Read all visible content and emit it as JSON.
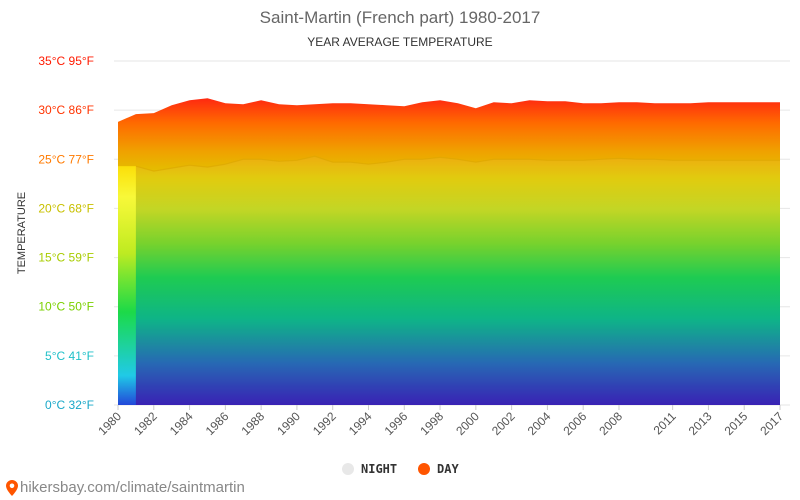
{
  "title": "Saint-Martin (French part) 1980-2017",
  "subtitle": "YEAR AVERAGE TEMPERATURE",
  "footer": {
    "text": "hikersbay.com/climate/saintmartin"
  },
  "colors": {
    "night": "#e8e8e8",
    "day": "#ff5500"
  },
  "legend": {
    "night": "NIGHT",
    "day": "DAY"
  },
  "chart_data": {
    "type": "area",
    "title": "Saint-Martin (French part) 1980-2017",
    "subtitle": "YEAR AVERAGE TEMPERATURE",
    "ylabel": "TEMPERATURE",
    "xlabel": "",
    "ylim": [
      0,
      35
    ],
    "y_ticks": [
      {
        "c": 0,
        "label": "0°C 32°F",
        "color": "#1aa8c8"
      },
      {
        "c": 5,
        "label": "5°C 41°F",
        "color": "#20c0c8"
      },
      {
        "c": 10,
        "label": "10°C 50°F",
        "color": "#7ad000"
      },
      {
        "c": 15,
        "label": "15°C 59°F",
        "color": "#a8cc00"
      },
      {
        "c": 20,
        "label": "20°C 68°F",
        "color": "#c8c000"
      },
      {
        "c": 25,
        "label": "25°C 77°F",
        "color": "#ff7a00"
      },
      {
        "c": 30,
        "label": "30°C 86°F",
        "color": "#ff3300"
      },
      {
        "c": 35,
        "label": "35°C 95°F",
        "color": "#ff1a00"
      }
    ],
    "x_tick_labels": [
      "1980",
      "1982",
      "1984",
      "1986",
      "1988",
      "1990",
      "1992",
      "1994",
      "1996",
      "1998",
      "2000",
      "2002",
      "2004",
      "2006",
      "2008",
      "2011",
      "2013",
      "2015",
      "2017"
    ],
    "legend": [
      "NIGHT",
      "DAY"
    ],
    "legend_position": "bottom",
    "grid": true,
    "years": [
      1980,
      1981,
      1982,
      1983,
      1984,
      1985,
      1986,
      1987,
      1988,
      1989,
      1990,
      1991,
      1992,
      1993,
      1994,
      1995,
      1996,
      1997,
      1998,
      1999,
      2000,
      2001,
      2002,
      2003,
      2004,
      2005,
      2006,
      2007,
      2008,
      2009,
      2010,
      2011,
      2012,
      2013,
      2014,
      2015,
      2016,
      2017
    ],
    "series": [
      {
        "name": "NIGHT",
        "values": [
          null,
          24.3,
          23.8,
          24.1,
          24.4,
          24.2,
          24.5,
          25.0,
          25.0,
          24.8,
          24.9,
          25.3,
          24.7,
          24.7,
          24.5,
          24.7,
          25.0,
          25.0,
          25.2,
          25.0,
          24.7,
          25.0,
          25.0,
          25.0,
          24.9,
          24.9,
          24.9,
          25.0,
          25.1,
          25.0,
          25.0,
          24.9,
          24.9,
          24.9,
          24.9,
          24.9,
          24.9,
          24.9
        ]
      },
      {
        "name": "DAY",
        "values": [
          28.8,
          29.6,
          29.7,
          30.5,
          31.0,
          31.2,
          30.7,
          30.6,
          31.0,
          30.6,
          30.5,
          30.6,
          30.7,
          30.7,
          30.6,
          30.5,
          30.4,
          30.8,
          31.0,
          30.7,
          30.2,
          30.8,
          30.7,
          31.0,
          30.9,
          30.9,
          30.7,
          30.7,
          30.8,
          30.8,
          30.7,
          30.7,
          30.7,
          30.8,
          30.8,
          30.8,
          30.8,
          30.8
        ]
      }
    ]
  }
}
